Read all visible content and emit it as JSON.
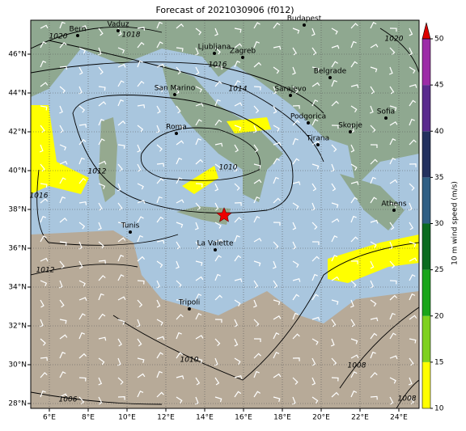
{
  "title": "Forecast of 2021030906 (f012)",
  "x_ticks": [
    "6°E",
    "8°E",
    "10°E",
    "12°E",
    "14°E",
    "16°E",
    "18°E",
    "20°E",
    "22°E",
    "24°E"
  ],
  "y_ticks": [
    "28°N",
    "30°N",
    "32°N",
    "34°N",
    "36°N",
    "38°N",
    "40°N",
    "42°N",
    "44°N",
    "46°N"
  ],
  "cities": [
    "Bern",
    "Vaduz",
    "Budapest",
    "Ljubljana",
    "Zagreb",
    "Belgrade",
    "San Marino",
    "Sarajevo",
    "Sofia",
    "Podgorica",
    "Skopje",
    "Roma",
    "Tirana",
    "Athens",
    "Tunis",
    "La Valette",
    "Tripoli"
  ],
  "isobar_labels": [
    "1020",
    "1018",
    "1016",
    "1014",
    "1012",
    "1010",
    "1016",
    "1012",
    "1020",
    "1010",
    "1008",
    "1006",
    "1008"
  ],
  "colorbar": {
    "label": "10 m wind speed (m/s)",
    "range": [
      10,
      50
    ],
    "ticks": [
      10,
      15,
      20,
      25,
      30,
      35,
      40,
      45,
      50
    ],
    "colors": [
      "#ffff00",
      "#7fd11f",
      "#1aa51a",
      "#0b6b20",
      "#2f5f84",
      "#23315f",
      "#5a2b8e",
      "#9c2ca7"
    ],
    "extend_color": "#dd0000"
  }
}
